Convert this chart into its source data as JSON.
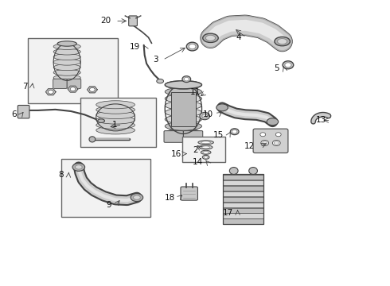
{
  "bg_color": "#ffffff",
  "fig_width": 4.9,
  "fig_height": 3.6,
  "dpi": 100,
  "line_color": "#444444",
  "text_color": "#111111",
  "box_edge_color": "#666666",
  "box_fill_color": "#f2f2f2",
  "component_fill": "#cccccc",
  "component_fill2": "#b8b8b8",
  "label_fontsize": 7.5,
  "labels": {
    "1": [
      0.3,
      0.565,
      "left"
    ],
    "2": [
      0.5,
      0.478,
      "left"
    ],
    "3": [
      0.398,
      0.795,
      "left"
    ],
    "4": [
      0.62,
      0.87,
      "left"
    ],
    "5": [
      0.72,
      0.762,
      "left"
    ],
    "6": [
      0.04,
      0.6,
      "left"
    ],
    "7": [
      0.068,
      0.7,
      "left"
    ],
    "8": [
      0.168,
      0.388,
      "left"
    ],
    "9": [
      0.285,
      0.285,
      "left"
    ],
    "10": [
      0.548,
      0.6,
      "left"
    ],
    "11": [
      0.515,
      0.68,
      "left"
    ],
    "12": [
      0.655,
      0.488,
      "left"
    ],
    "13": [
      0.838,
      0.58,
      "left"
    ],
    "14": [
      0.52,
      0.435,
      "left"
    ],
    "15": [
      0.575,
      0.53,
      "left"
    ],
    "16": [
      0.465,
      0.465,
      "right"
    ],
    "17": [
      0.598,
      0.258,
      "left"
    ],
    "18": [
      0.45,
      0.308,
      "left"
    ],
    "19": [
      0.358,
      0.84,
      "left"
    ],
    "20": [
      0.285,
      0.93,
      "left"
    ]
  }
}
